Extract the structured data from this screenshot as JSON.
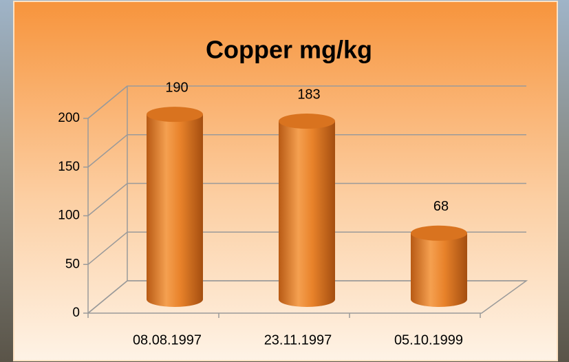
{
  "chart_data": {
    "type": "bar",
    "title": "Copper mg/kg",
    "categories": [
      "08.08.1997",
      "23.11.1997",
      "05.10.1999"
    ],
    "values": [
      190,
      183,
      68
    ],
    "color": "#e8822a",
    "ylim": [
      0,
      200
    ],
    "yticks": [
      0,
      50,
      100,
      150,
      200
    ],
    "grid": true
  }
}
